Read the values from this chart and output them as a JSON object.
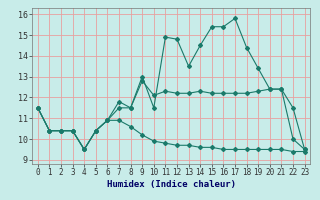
{
  "title": "",
  "xlabel": "Humidex (Indice chaleur)",
  "background_color": "#c8ece9",
  "grid_color": "#e8a0a0",
  "line_color": "#1a7a6a",
  "xlim": [
    -0.5,
    23.5
  ],
  "ylim": [
    8.8,
    16.3
  ],
  "yticks": [
    9,
    10,
    11,
    12,
    13,
    14,
    15,
    16
  ],
  "xticks": [
    0,
    1,
    2,
    3,
    4,
    5,
    6,
    7,
    8,
    9,
    10,
    11,
    12,
    13,
    14,
    15,
    16,
    17,
    18,
    19,
    20,
    21,
    22,
    23
  ],
  "series1_x": [
    0,
    1,
    2,
    3,
    4,
    5,
    6,
    7,
    8,
    9,
    10,
    11,
    12,
    13,
    14,
    15,
    16,
    17,
    18,
    19,
    20,
    21,
    22,
    23
  ],
  "series1_y": [
    11.5,
    10.4,
    10.4,
    10.4,
    9.5,
    10.4,
    10.9,
    11.8,
    11.5,
    13.0,
    11.5,
    14.9,
    14.8,
    13.5,
    14.5,
    15.4,
    15.4,
    15.8,
    14.4,
    13.4,
    12.4,
    12.4,
    10.0,
    9.5
  ],
  "series2_x": [
    0,
    1,
    2,
    3,
    4,
    5,
    6,
    7,
    8,
    9,
    10,
    11,
    12,
    13,
    14,
    15,
    16,
    17,
    18,
    19,
    20,
    21,
    22,
    23
  ],
  "series2_y": [
    11.5,
    10.4,
    10.4,
    10.4,
    9.5,
    10.4,
    10.9,
    11.5,
    11.5,
    12.8,
    12.1,
    12.3,
    12.2,
    12.2,
    12.3,
    12.2,
    12.2,
    12.2,
    12.2,
    12.3,
    12.4,
    12.4,
    11.5,
    9.5
  ],
  "series3_x": [
    0,
    1,
    2,
    3,
    4,
    5,
    6,
    7,
    8,
    9,
    10,
    11,
    12,
    13,
    14,
    15,
    16,
    17,
    18,
    19,
    20,
    21,
    22,
    23
  ],
  "series3_y": [
    11.5,
    10.4,
    10.4,
    10.4,
    9.5,
    10.4,
    10.9,
    10.9,
    10.6,
    10.2,
    9.9,
    9.8,
    9.7,
    9.7,
    9.6,
    9.6,
    9.5,
    9.5,
    9.5,
    9.5,
    9.5,
    9.5,
    9.4,
    9.4
  ],
  "marker_size": 2.0,
  "line_width": 0.8,
  "tick_fontsize": 5.5,
  "xlabel_fontsize": 6.5
}
